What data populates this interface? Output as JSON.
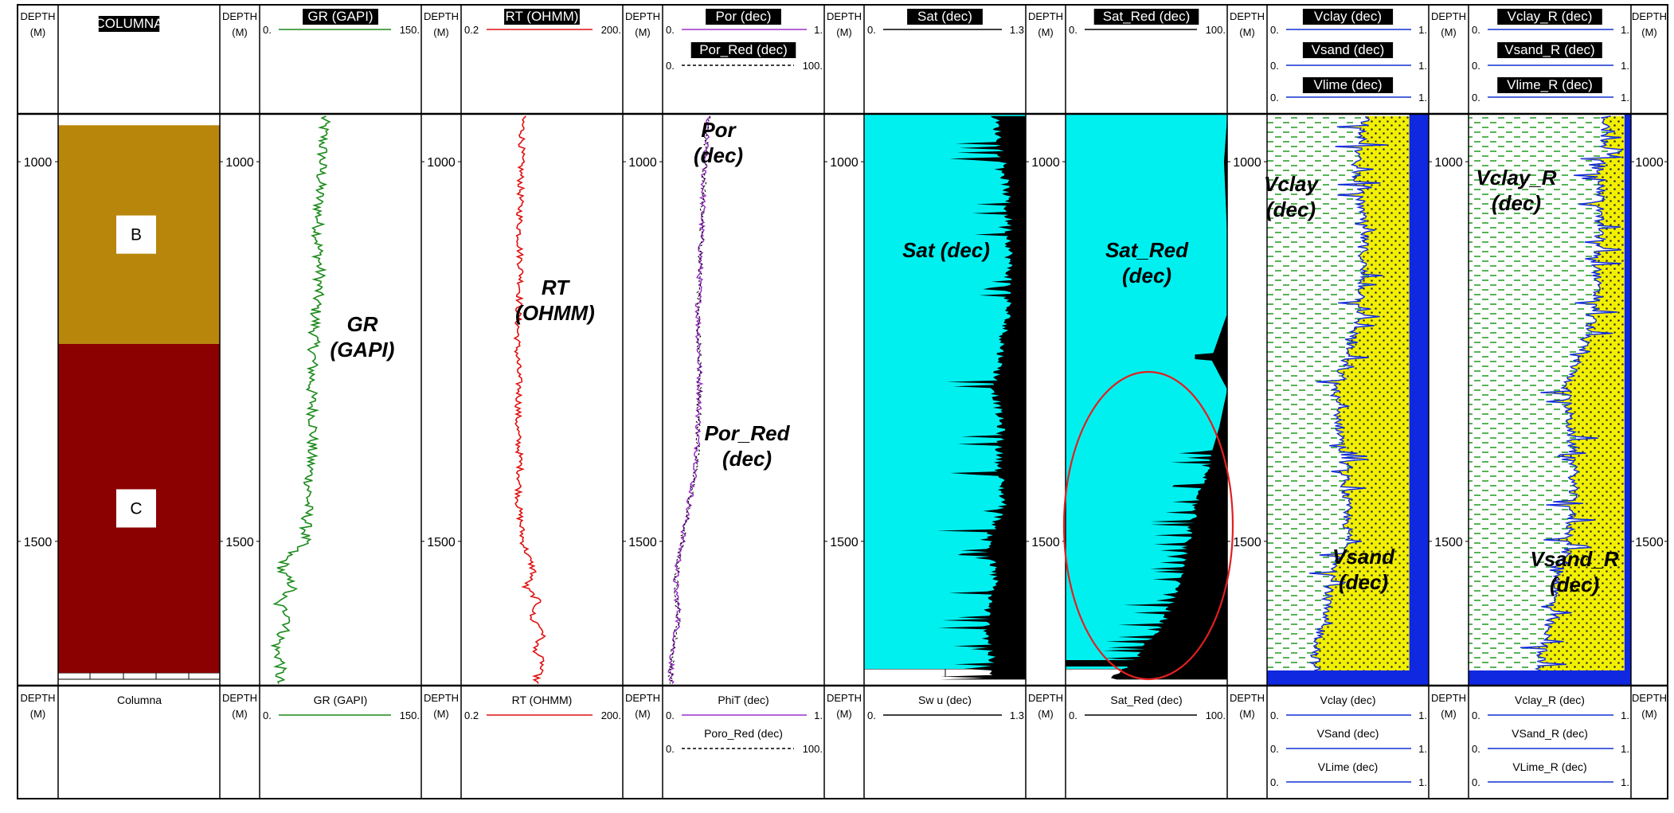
{
  "depth_label": [
    "DEPTH",
    "(M)"
  ],
  "depth_ticks": [
    "1000",
    "1500"
  ],
  "columna": {
    "header": "COLUMNA",
    "footer": "Columna",
    "zones": [
      {
        "label": "B",
        "color": "#B8860B",
        "top": 952,
        "base": 1240
      },
      {
        "label": "C",
        "color": "#8B0000",
        "top": 1240,
        "base": 1682
      }
    ]
  },
  "tracks": [
    {
      "id": "gr",
      "header": [
        {
          "name": "GR (GAPI)",
          "min": "0.",
          "max": "150.",
          "color": "#1a8a1a",
          "dash": false
        }
      ],
      "footer": [
        {
          "name": "GR (GAPI)",
          "min": "0.",
          "max": "150.",
          "color": "#1a8a1a",
          "dash": false
        }
      ],
      "annotations": [
        {
          "text": "GR",
          "line": 1
        },
        {
          "text": "(GAPI)",
          "line": 2
        }
      ]
    },
    {
      "id": "rt",
      "header": [
        {
          "name": "RT (OHMM)",
          "min": "0.2",
          "max": "200.",
          "color": "#e01010",
          "dash": false
        }
      ],
      "footer": [
        {
          "name": "RT (OHMM)",
          "min": "0.2",
          "max": "200.",
          "color": "#e01010",
          "dash": false
        }
      ],
      "annotations": [
        {
          "text": "RT",
          "line": 1
        },
        {
          "text": "(OHMM)",
          "line": 2
        }
      ]
    },
    {
      "id": "por",
      "header": [
        {
          "name": "Por (dec)",
          "min": "0.",
          "max": "1.",
          "color": "#9b30c8",
          "dash": false
        },
        {
          "name": "Por_Red (dec)",
          "min": "0.",
          "max": "100.",
          "color": "#000000",
          "dash": true
        }
      ],
      "footer": [
        {
          "name": "PhiT (dec)",
          "min": "0.",
          "max": "1.",
          "color": "#9b30c8",
          "dash": false
        },
        {
          "name": "Poro_Red (dec)",
          "min": "0.",
          "max": "100.",
          "color": "#000000",
          "dash": true
        }
      ],
      "annotations": [
        {
          "text": "Por",
          "line": 1
        },
        {
          "text": "(dec)",
          "line": 2
        },
        {
          "text": "Por_Red",
          "line": 3
        },
        {
          "text": "(dec)",
          "line": 4
        }
      ]
    },
    {
      "id": "sat",
      "header": [
        {
          "name": "Sat (dec)",
          "min": "0.",
          "max": "1.3",
          "color": "#000000",
          "dash": false
        }
      ],
      "footer": [
        {
          "name": "Sw u (dec)",
          "min": "0.",
          "max": "1.3",
          "color": "#000000",
          "dash": false
        }
      ],
      "annotations": [
        {
          "text": "Sat (dec)",
          "line": 1
        }
      ]
    },
    {
      "id": "satred",
      "header": [
        {
          "name": "Sat_Red (dec)",
          "min": "0.",
          "max": "100.",
          "color": "#000000",
          "dash": false
        }
      ],
      "footer": [
        {
          "name": "Sat_Red (dec)",
          "min": "0.",
          "max": "100.",
          "color": "#000000",
          "dash": false
        }
      ],
      "annotations": [
        {
          "text": "Sat_Red",
          "line": 1
        },
        {
          "text": "(dec)",
          "line": 2
        }
      ]
    },
    {
      "id": "vclay",
      "header": [
        {
          "name": "Vclay (dec)",
          "min": "0.",
          "max": "1.",
          "color": "#1030d0",
          "dash": false
        },
        {
          "name": "Vsand (dec)",
          "min": "0.",
          "max": "1.",
          "color": "#1030d0",
          "dash": false
        },
        {
          "name": "Vlime (dec)",
          "min": "0.",
          "max": "1.",
          "color": "#1030d0",
          "dash": false
        }
      ],
      "footer": [
        {
          "name": "Vclay (dec)",
          "min": "0.",
          "max": "1.",
          "color": "#1030d0",
          "dash": false
        },
        {
          "name": "VSand (dec)",
          "min": "0.",
          "max": "1.",
          "color": "#1030d0",
          "dash": false
        },
        {
          "name": "VLime (dec)",
          "min": "0.",
          "max": "1.",
          "color": "#1030d0",
          "dash": false
        }
      ],
      "annotations": [
        {
          "text": "Vclay",
          "line": 1
        },
        {
          "text": "(dec)",
          "line": 2
        },
        {
          "text": "Vsand",
          "line": 3
        },
        {
          "text": "(dec)",
          "line": 4
        }
      ]
    },
    {
      "id": "vclayr",
      "header": [
        {
          "name": "Vclay_R (dec)",
          "min": "0.",
          "max": "1.",
          "color": "#1030d0",
          "dash": false
        },
        {
          "name": "Vsand_R (dec)",
          "min": "0.",
          "max": "1.",
          "color": "#1030d0",
          "dash": false
        },
        {
          "name": "Vlime_R (dec)",
          "min": "0.",
          "max": "1.",
          "color": "#1030d0",
          "dash": false
        }
      ],
      "footer": [
        {
          "name": "Vclay_R (dec)",
          "min": "0.",
          "max": "1.",
          "color": "#1030d0",
          "dash": false
        },
        {
          "name": "VSand_R (dec)",
          "min": "0.",
          "max": "1.",
          "color": "#1030d0",
          "dash": false
        },
        {
          "name": "VLime_R (dec)",
          "min": "0.",
          "max": "1.",
          "color": "#1030d0",
          "dash": false
        }
      ],
      "annotations": [
        {
          "text": "Vclay_R",
          "line": 1
        },
        {
          "text": "(dec)",
          "line": 2
        },
        {
          "text": "Vsand_R",
          "line": 3
        },
        {
          "text": "(dec)",
          "line": 4
        }
      ]
    }
  ],
  "colors": {
    "sat_fill": "#00F0F0",
    "lith_clay": "#2ca02c",
    "lith_sand": "#F2F000",
    "lith_lime": "#1028E0",
    "highlight": "#E02020"
  },
  "chart_data": {
    "type": "line",
    "depth_range_m": [
      937,
      1690
    ],
    "depth_unit": "M",
    "series": [
      {
        "name": "GR (GAPI)",
        "range": [
          0,
          150
        ],
        "depth": [
          940,
          1000,
          1050,
          1100,
          1150,
          1200,
          1250,
          1300,
          1350,
          1400,
          1450,
          1500,
          1520,
          1540,
          1560,
          1580,
          1600,
          1620,
          1640,
          1660,
          1680
        ],
        "values": [
          60,
          58,
          55,
          54,
          56,
          52,
          50,
          48,
          50,
          47,
          45,
          42,
          25,
          20,
          32,
          15,
          30,
          22,
          15,
          20,
          18
        ]
      },
      {
        "name": "RT (OHMM)",
        "range": [
          0.2,
          200
        ],
        "scale": "log",
        "depth": [
          940,
          1000,
          1050,
          1100,
          1150,
          1200,
          1250,
          1300,
          1350,
          1400,
          1450,
          1500,
          1520,
          1540,
          1560,
          1580,
          1600,
          1620,
          1640,
          1660,
          1680
        ],
        "values": [
          2.8,
          2.6,
          2.5,
          2.4,
          2.6,
          2.3,
          2.2,
          2.4,
          2.2,
          2.5,
          2.3,
          2.8,
          3.5,
          4.5,
          3.0,
          5.5,
          3.8,
          7.0,
          4.5,
          6.5,
          5.0
        ]
      },
      {
        "name": "Por (dec)",
        "range": [
          0,
          1
        ],
        "depth": [
          940,
          1000,
          1100,
          1200,
          1300,
          1400,
          1500,
          1550,
          1600,
          1650,
          1680
        ],
        "values": [
          0.28,
          0.26,
          0.24,
          0.22,
          0.23,
          0.21,
          0.12,
          0.08,
          0.1,
          0.06,
          0.05
        ]
      },
      {
        "name": "Sat (dec)",
        "range": [
          0,
          1.3
        ],
        "depth": [
          940,
          1000,
          1100,
          1200,
          1300,
          1350,
          1400,
          1450,
          1500,
          1550,
          1600,
          1650,
          1680
        ],
        "values": [
          1.05,
          1.12,
          1.17,
          1.15,
          1.05,
          1.1,
          1.08,
          1.12,
          1.0,
          1.05,
          0.98,
          1.02,
          1.0
        ]
      },
      {
        "name": "Sat_Red (dec)",
        "range": [
          0,
          100
        ],
        "depth": [
          940,
          1000,
          1100,
          1200,
          1260,
          1300,
          1350,
          1400,
          1450,
          1500,
          1550,
          1600,
          1650,
          1680
        ],
        "values": [
          100,
          98,
          100,
          100,
          90,
          100,
          95,
          88,
          82,
          75,
          70,
          62,
          45,
          30
        ]
      },
      {
        "name": "Vclay (dec)",
        "range": [
          0,
          1
        ],
        "depth": [
          940,
          1000,
          1100,
          1200,
          1300,
          1400,
          1500,
          1550,
          1600,
          1650,
          1680
        ],
        "values": [
          0.62,
          0.55,
          0.6,
          0.58,
          0.42,
          0.48,
          0.5,
          0.4,
          0.35,
          0.3,
          0.3
        ]
      },
      {
        "name": "Vclay_R (dec)",
        "range": [
          0,
          1
        ],
        "depth": [
          940,
          1000,
          1100,
          1200,
          1300,
          1400,
          1500,
          1550,
          1600,
          1650,
          1680
        ],
        "values": [
          0.85,
          0.82,
          0.8,
          0.78,
          0.6,
          0.65,
          0.62,
          0.55,
          0.5,
          0.45,
          0.42
        ]
      }
    ]
  }
}
